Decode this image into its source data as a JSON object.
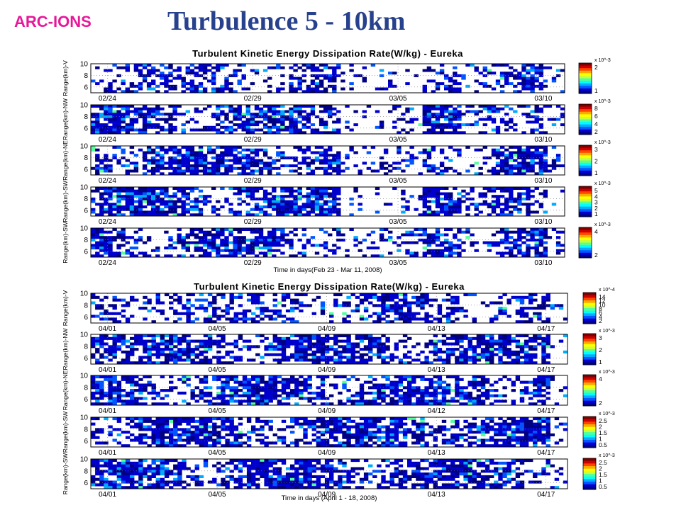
{
  "slide": {
    "brand": "ARC-IONS",
    "title": "Turbulence 5 - 10km",
    "colors": {
      "brand": "#e8179a",
      "title": "#28418c"
    }
  },
  "colormap": [
    "#000080",
    "#0000cd",
    "#0055ff",
    "#00aaff",
    "#00ffff",
    "#55ff99",
    "#ccff33",
    "#ffff00",
    "#ffaa00",
    "#ff4400",
    "#cc0000",
    "#800000"
  ],
  "chart_data": [
    {
      "type": "heatmap",
      "title": "Turbulent Kinetic Energy Dissipation Rate(W/kg) - Eureka",
      "xlabel": "Time in days(Feb 23 - Mar 11, 2008)",
      "x_range": [
        "2008-02-23",
        "2008-03-11"
      ],
      "grid": true,
      "colormap": "jet",
      "panels": [
        {
          "ylabel": "Range(km)-V",
          "yticks": [
            6,
            8,
            10
          ],
          "ylim": [
            5,
            10
          ],
          "xticks": [
            "02/24",
            "02/29",
            "03/05",
            "03/10"
          ],
          "colorbar": {
            "exponent": "x 10^-3",
            "ticks": [
              "2",
              "1"
            ]
          }
        },
        {
          "ylabel": "Range(km)-NW",
          "yticks": [
            6,
            8,
            10
          ],
          "ylim": [
            5,
            10
          ],
          "xticks": [
            "02/24",
            "02/29",
            "03/05",
            "03/10"
          ],
          "colorbar": {
            "exponent": "x 10^-3",
            "ticks": [
              "8",
              "6",
              "4",
              "2"
            ]
          }
        },
        {
          "ylabel": "Range(km)-NE",
          "yticks": [
            6,
            8,
            10
          ],
          "ylim": [
            5,
            10
          ],
          "xticks": [
            "02/24",
            "02/29",
            "03/05",
            "03/10"
          ],
          "colorbar": {
            "exponent": "x 10^-3",
            "ticks": [
              "3",
              "2",
              "1"
            ]
          }
        },
        {
          "ylabel": "Range(km)-SW",
          "yticks": [
            6,
            8,
            10
          ],
          "ylim": [
            5,
            10
          ],
          "xticks": [
            "02/24",
            "02/29",
            "03/05",
            "03/10"
          ],
          "colorbar": {
            "exponent": "x 10^-3",
            "ticks": [
              "5",
              "4",
              "3",
              "2",
              "1"
            ]
          }
        },
        {
          "ylabel": "Range(km)-SW",
          "yticks": [
            6,
            8,
            10
          ],
          "ylim": [
            5,
            10
          ],
          "xticks": [
            "02/24",
            "02/29",
            "03/05",
            "03/10"
          ],
          "colorbar": {
            "exponent": "x 10^-3",
            "ticks": [
              "4",
              "2"
            ]
          }
        }
      ]
    },
    {
      "type": "heatmap",
      "title": "Turbulent Kinetic Energy Dissipation Rate(W/kg) - Eureka",
      "xlabel": "Time in days (April 1 - 18, 2008)",
      "x_range": [
        "2008-04-01",
        "2008-04-18"
      ],
      "grid": true,
      "colormap": "jet",
      "panels": [
        {
          "ylabel": "Range(km)-V",
          "yticks": [
            6,
            8,
            10
          ],
          "ylim": [
            5,
            10
          ],
          "xticks": [
            "04/01",
            "04/05",
            "04/09",
            "04/13",
            "04/17"
          ],
          "colorbar": {
            "exponent": "x 10^-4",
            "ticks": [
              "14",
              "12",
              "10",
              "8",
              "6",
              "4",
              "2"
            ]
          }
        },
        {
          "ylabel": "Range(km)-NW",
          "yticks": [
            6,
            8,
            10
          ],
          "ylim": [
            5,
            10
          ],
          "xticks": [
            "04/01",
            "04/05",
            "04/09",
            "04/13",
            "04/17"
          ],
          "colorbar": {
            "exponent": "x 10^-3",
            "ticks": [
              "3",
              "2",
              "1"
            ]
          }
        },
        {
          "ylabel": "Range(km)-NE",
          "yticks": [
            6,
            8,
            10
          ],
          "ylim": [
            5,
            10
          ],
          "xticks": [
            "04/01",
            "04/05",
            "04/09",
            "04/12",
            "04/17"
          ],
          "colorbar": {
            "exponent": "x 10^-3",
            "ticks": [
              "4",
              "2"
            ]
          }
        },
        {
          "ylabel": "Range(km)-SW",
          "yticks": [
            6,
            8,
            10
          ],
          "ylim": [
            5,
            10
          ],
          "xticks": [
            "04/01",
            "04/05",
            "04/09",
            "04/13",
            "04/17"
          ],
          "colorbar": {
            "exponent": "x 10^-3",
            "ticks": [
              "2.5",
              "2",
              "1.5",
              "1",
              "0.5"
            ]
          }
        },
        {
          "ylabel": "Range(km)-SW",
          "yticks": [
            6,
            8,
            10
          ],
          "ylim": [
            5,
            10
          ],
          "xticks": [
            "04/01",
            "04/05",
            "04/09",
            "04/13",
            "04/17"
          ],
          "colorbar": {
            "exponent": "x 10^-3",
            "ticks": [
              "2.5",
              "2",
              "1.5",
              "1",
              "0.5"
            ]
          }
        }
      ]
    }
  ]
}
